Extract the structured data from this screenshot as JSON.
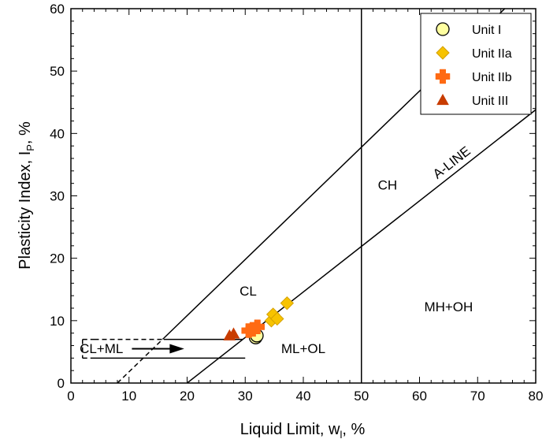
{
  "chart_data": {
    "type": "scatter",
    "xlabel_main": "Liquid Limit,  w",
    "xlabel_sub": "l",
    "xlabel_tail": ",  %",
    "ylabel_main": "Plasticity Index,  I",
    "ylabel_sub": "P",
    "ylabel_tail": ",  %",
    "xlim": [
      0,
      80
    ],
    "ylim": [
      0,
      60
    ],
    "xticks": [
      0,
      10,
      20,
      30,
      40,
      50,
      60,
      70,
      80
    ],
    "yticks": [
      0,
      10,
      20,
      30,
      40,
      50,
      60
    ],
    "grid": false,
    "legend_position": "top-right",
    "series": [
      {
        "name": "Unit I",
        "marker": "circle",
        "color": "#ffffa0",
        "stroke": "#000000",
        "points": [
          [
            31.8,
            7.3
          ],
          [
            32.0,
            7.6
          ]
        ]
      },
      {
        "name": "Unit IIa",
        "marker": "diamond",
        "color": "#f7c300",
        "stroke": "#d4a000",
        "points": [
          [
            34.5,
            10.0
          ],
          [
            34.8,
            11.0
          ],
          [
            35.5,
            10.3
          ],
          [
            37.2,
            12.8
          ]
        ]
      },
      {
        "name": "Unit IIb",
        "marker": "plus",
        "color": "#ff6a13",
        "stroke": "#ff6a13",
        "points": [
          [
            30.6,
            8.4
          ],
          [
            31.3,
            8.6
          ],
          [
            32.1,
            9.0
          ]
        ]
      },
      {
        "name": "Unit III",
        "marker": "triangle",
        "color": "#c83c00",
        "stroke": "#c83c00",
        "points": [
          [
            27.3,
            7.6
          ],
          [
            28.0,
            7.9
          ]
        ]
      }
    ],
    "reference_lines": {
      "a_line_label": "A-LINE",
      "ll50_x": 50
    },
    "regions": {
      "ch": "CH",
      "cl": "CL",
      "mh_oh": "MH+OH",
      "ml_ol": "ML+OL",
      "cl_ml": "CL+ML"
    }
  }
}
